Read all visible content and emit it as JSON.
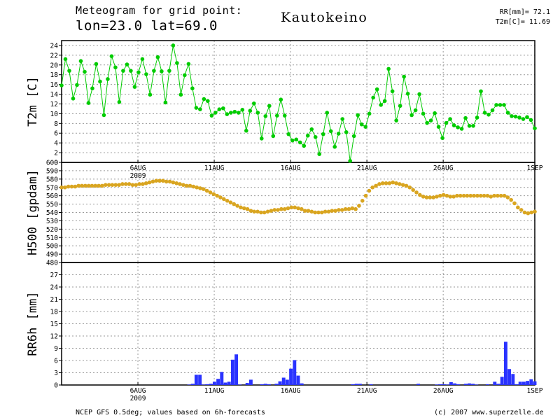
{
  "header": {
    "title_line1": "Meteogram for grid point:",
    "title_line2": "lon=23.0  lat=69.0",
    "station": "Kautokeino",
    "stat_rr": "RR[mm]= 72.1",
    "stat_t2m": "T2m[C]= 11.69"
  },
  "footer": {
    "source": "NCEP GFS 0.5deg; values based on 6h-forecasts",
    "copyright": "(c) 2007 www.superzelle.de"
  },
  "colors": {
    "t2m": "#00cc00",
    "h500": "#d9a520",
    "rr": "#2a33ff",
    "grid": "#9a9a9a"
  },
  "chart_data": [
    {
      "type": "line",
      "ylabel": "T2m [C]",
      "ylim": [
        0,
        25
      ],
      "yticks": [
        "0",
        "2",
        "4",
        "6",
        "8",
        "10",
        "12",
        "14",
        "16",
        "18",
        "20",
        "22",
        "24"
      ],
      "x_start": "2009-08-01",
      "x_step_hours": 6,
      "x_tick_labels": [
        "6AUG",
        "11AUG",
        "16AUG",
        "21AUG",
        "26AUG",
        "1SEP"
      ],
      "x_year_label": "2009",
      "grid": true,
      "series": [
        {
          "values": [
            15.8,
            21.2,
            18.8,
            13.1,
            15.9,
            20.8,
            18.6,
            12.2,
            15.2,
            20.2,
            16.6,
            9.7,
            17.1,
            21.8,
            19.5,
            12.4,
            18.8,
            20.1,
            18.8,
            15.5,
            18.5,
            21.2,
            18.1,
            13.9,
            18.8,
            21.6,
            18.7,
            12.3,
            18.8,
            24.0,
            20.4,
            13.9,
            17.9,
            20.2,
            15.2,
            11.2,
            10.9,
            13.0,
            12.6,
            9.6,
            10.2,
            10.9,
            11.1,
            9.9,
            10.2,
            10.4,
            10.2,
            10.8,
            6.5,
            10.6,
            12.1,
            10.2,
            4.9,
            9.5,
            11.6,
            5.4,
            9.6,
            12.9,
            9.6,
            5.8,
            4.5,
            4.7,
            4.1,
            3.4,
            5.5,
            6.8,
            5.2,
            1.7,
            5.8,
            10.2,
            6.4,
            3.2,
            5.9,
            8.9,
            6.2,
            0.3,
            5.4,
            9.7,
            7.8,
            7.3,
            10.0,
            13.3,
            15.0,
            11.8,
            12.6,
            19.2,
            14.6,
            8.6,
            11.6,
            17.6,
            14.1,
            9.7,
            10.7,
            14.0,
            10.0,
            8.1,
            8.6,
            10.1,
            7.3,
            5.0,
            8.1,
            8.9,
            7.6,
            7.2,
            6.9,
            9.1,
            7.5,
            7.5,
            9.2,
            14.6,
            10.2,
            9.8,
            10.7,
            11.8,
            11.8,
            11.8,
            10.2,
            9.5,
            9.4,
            9.2,
            8.9,
            9.3,
            8.7,
            7.0
          ]
        }
      ]
    },
    {
      "type": "line",
      "ylabel": "H500 [gpdam]",
      "ylim": [
        480,
        600
      ],
      "yticks": [
        "480",
        "490",
        "500",
        "510",
        "520",
        "530",
        "540",
        "550",
        "560",
        "570",
        "580",
        "590",
        "600"
      ],
      "x_tick_labels": [
        "6AUG",
        "11AUG",
        "16AUG",
        "21AUG",
        "26AUG",
        "1SEP"
      ],
      "x_year_label": "2009",
      "grid": true,
      "series": [
        {
          "values": [
            570,
            570,
            571,
            571,
            571,
            572,
            572,
            572,
            572,
            572,
            572,
            572,
            572,
            573,
            573,
            573,
            573,
            573,
            574,
            574,
            574,
            573,
            573,
            574,
            574,
            575,
            576,
            577,
            578,
            578,
            578,
            577,
            577,
            576,
            575,
            574,
            573,
            572,
            572,
            571,
            570,
            569,
            568,
            566,
            564,
            562,
            560,
            558,
            556,
            554,
            552,
            550,
            548,
            546,
            545,
            544,
            542,
            541,
            541,
            540,
            540,
            541,
            542,
            543,
            543,
            544,
            544,
            545,
            546,
            546,
            545,
            544,
            542,
            542,
            541,
            540,
            540,
            540,
            541,
            541,
            542,
            542,
            543,
            543,
            544,
            544,
            545,
            544,
            548,
            554,
            560,
            566,
            570,
            572,
            574,
            575,
            575,
            575,
            576,
            575,
            574,
            573,
            572,
            570,
            567,
            564,
            561,
            559,
            558,
            558,
            558,
            559,
            560,
            561,
            560,
            559,
            559,
            560,
            560,
            560,
            560,
            560,
            560,
            560,
            560,
            560,
            560,
            559,
            560,
            560,
            560,
            560,
            558,
            555,
            551,
            546,
            543,
            540,
            539,
            540,
            541
          ]
        }
      ]
    },
    {
      "type": "bar",
      "ylabel": "RR6h [mm]",
      "ylim": [
        0,
        30
      ],
      "yticks": [
        "0",
        "3",
        "6",
        "9",
        "12",
        "15",
        "18",
        "21",
        "24",
        "27"
      ],
      "x_tick_labels": [
        "6AUG",
        "11AUG",
        "16AUG",
        "21AUG",
        "26AUG",
        "1SEP"
      ],
      "x_year_label": "2009",
      "grid": true,
      "series": [
        {
          "values": [
            0,
            0,
            0,
            0,
            0,
            0,
            0,
            0,
            0,
            0,
            0,
            0,
            0,
            0,
            0,
            0,
            0,
            0,
            0,
            0,
            0,
            0,
            0,
            0,
            0,
            0,
            0,
            0,
            0,
            0,
            0,
            0,
            0,
            0,
            0,
            0.1,
            0.3,
            2.5,
            2.5,
            0.1,
            0.2,
            0.3,
            0.8,
            1.5,
            3.2,
            0.6,
            0.8,
            6.2,
            7.5,
            0.1,
            0,
            0.5,
            1.3,
            0,
            0,
            0.2,
            0.3,
            0.2,
            0,
            0.3,
            0.9,
            1.8,
            1.3,
            4.0,
            6.1,
            2.3,
            0.4,
            0,
            0,
            0,
            0,
            0,
            0,
            0,
            0,
            0,
            0,
            0,
            0,
            0,
            0.2,
            0.3,
            0.3,
            0,
            0,
            0.2,
            0,
            0,
            0,
            0,
            0,
            0,
            0,
            0,
            0,
            0,
            0,
            0,
            0.3,
            0,
            0,
            0,
            0,
            0.1,
            0.2,
            0.2,
            0.1,
            0.7,
            0.4,
            0.2,
            0,
            0.3,
            0.4,
            0.3,
            0.1,
            0,
            0,
            0.2,
            0,
            0.8,
            0.3,
            2.0,
            10.6,
            3.9,
            2.7,
            0.2,
            0.8,
            0.8,
            1.0,
            1.4,
            0.9
          ]
        }
      ]
    }
  ]
}
